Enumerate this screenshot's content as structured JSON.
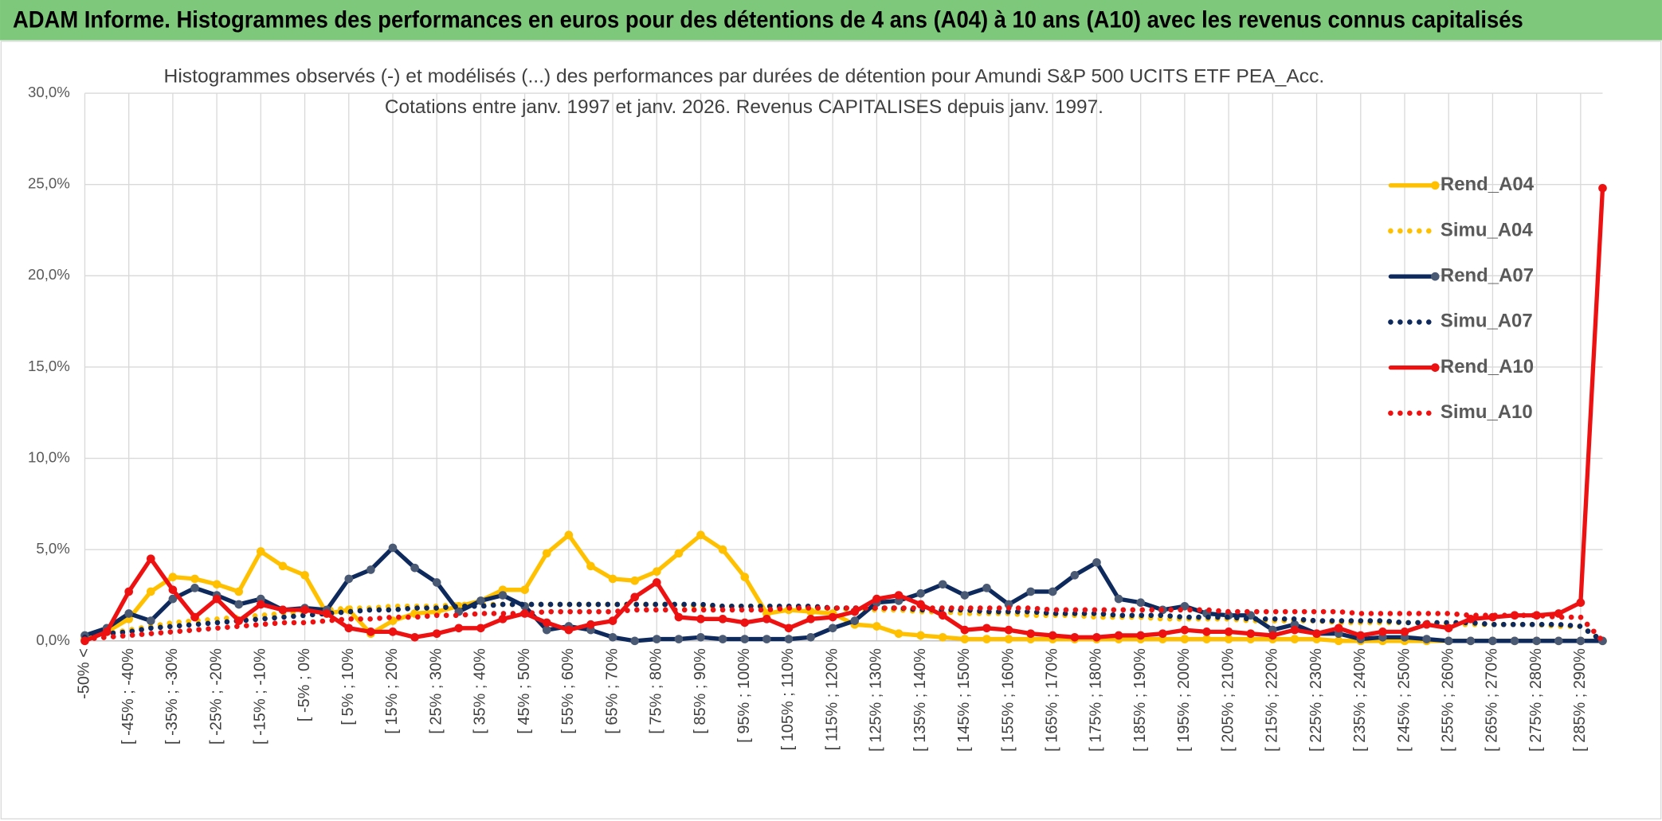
{
  "header": {
    "title": "ADAM Informe. Histogrammes des performances en euros pour des détentions de 4 ans (A04) à 10 ans (A10) avec les revenus connus capitalisés"
  },
  "chart_data": {
    "type": "line",
    "title": "Histogrammes observés (-) et modélisés (...) des performances par durées de détention pour Amundi S&P 500 UCITS ETF PEA_Acc.",
    "subtitle": "Cotations entre janv. 1997 et janv. 2026. Revenus CAPITALISES depuis janv. 1997.",
    "categories": [
      "-50% <",
      null,
      "[ -45% ; -40%",
      null,
      "[ -35% ; -30%",
      null,
      "[ -25% ; -20%",
      null,
      "[ -15% ; -10%",
      null,
      "[ -5% ; 0%",
      null,
      "[ 5% ; 10%",
      null,
      "[ 15% ; 20%",
      null,
      "[ 25% ; 30%",
      null,
      "[ 35% ; 40%",
      null,
      "[ 45% ; 50%",
      null,
      "[ 55% ; 60%",
      null,
      "[ 65% ; 70%",
      null,
      "[ 75% ; 80%",
      null,
      "[ 85% ; 90%",
      null,
      "[ 95% ; 100%",
      null,
      "[ 105% ; 110%",
      null,
      "[ 115% ; 120%",
      null,
      "[ 125% ; 130%",
      null,
      "[ 135% ; 140%",
      null,
      "[ 145% ; 150%",
      null,
      "[ 155% ; 160%",
      null,
      "[ 165% ; 170%",
      null,
      "[ 175% ; 180%",
      null,
      "[ 185% ; 190%",
      null,
      "[ 195% ; 200%",
      null,
      "[ 205% ; 210%",
      null,
      "[ 215% ; 220%",
      null,
      "[ 225% ; 230%",
      null,
      "[ 235% ; 240%",
      null,
      "[ 245% ; 250%",
      null,
      "[ 255% ; 260%",
      null,
      "[ 265% ; 270%",
      null,
      "[ 275% ; 280%",
      null,
      "[ 285% ; 290%",
      null
    ],
    "series": [
      {
        "name": "Rend_A04",
        "color": "#ffc000",
        "style": "solid",
        "marker": true,
        "values": [
          0.1,
          0.5,
          1.2,
          2.7,
          3.5,
          3.4,
          3.1,
          2.7,
          4.9,
          4.1,
          3.6,
          1.5,
          1.7,
          0.4,
          1.1,
          1.5,
          1.6,
          1.9,
          2.2,
          2.8,
          2.8,
          4.8,
          5.8,
          4.1,
          3.4,
          3.3,
          3.8,
          4.8,
          5.8,
          5.0,
          3.5,
          1.5,
          1.7,
          1.6,
          1.5,
          0.9,
          0.8,
          0.4,
          0.3,
          0.2,
          0.1,
          0.1,
          0.1,
          0.1,
          0.1,
          0.1,
          0.1,
          0.1,
          0.1,
          0.1,
          0.1,
          0.1,
          0.1,
          0.1,
          0.1,
          0.1,
          0.1,
          0.0,
          0.0,
          0.0,
          0.0,
          0.0,
          0.0,
          0.0,
          0.0,
          0.0,
          0.0,
          0.0,
          0.0,
          0.0
        ]
      },
      {
        "name": "Simu_A04",
        "color": "#ffc000",
        "style": "dotted",
        "marker": false,
        "values": [
          0.2,
          0.4,
          0.6,
          0.8,
          1.0,
          1.1,
          1.2,
          1.3,
          1.4,
          1.5,
          1.6,
          1.7,
          1.8,
          1.8,
          1.9,
          1.9,
          1.9,
          2.0,
          2.0,
          2.0,
          2.0,
          2.0,
          2.0,
          2.0,
          2.0,
          2.0,
          2.0,
          2.0,
          1.9,
          1.9,
          1.9,
          1.9,
          1.8,
          1.8,
          1.8,
          1.7,
          1.7,
          1.7,
          1.6,
          1.6,
          1.5,
          1.5,
          1.5,
          1.4,
          1.4,
          1.4,
          1.3,
          1.3,
          1.3,
          1.2,
          1.2,
          1.2,
          1.2,
          1.1,
          1.1,
          1.1,
          1.1,
          1.0,
          1.0,
          1.0,
          1.0,
          1.0,
          0.9,
          0.9,
          0.9,
          0.9,
          0.9,
          0.8,
          0.8,
          0.0
        ]
      },
      {
        "name": "Rend_A07",
        "color": "#0e2a5c",
        "style": "solid",
        "marker": true,
        "values": [
          0.3,
          0.7,
          1.5,
          1.1,
          2.3,
          2.9,
          2.5,
          2.0,
          2.3,
          1.7,
          1.8,
          1.7,
          3.4,
          3.9,
          5.1,
          4.0,
          3.2,
          1.6,
          2.2,
          2.5,
          1.9,
          0.6,
          0.8,
          0.6,
          0.2,
          0.0,
          0.1,
          0.1,
          0.2,
          0.1,
          0.1,
          0.1,
          0.1,
          0.2,
          0.7,
          1.1,
          2.1,
          2.2,
          2.6,
          3.1,
          2.5,
          2.9,
          2.0,
          2.7,
          2.7,
          3.6,
          4.3,
          2.3,
          2.1,
          1.7,
          1.9,
          1.5,
          1.4,
          1.4,
          0.6,
          0.9,
          0.4,
          0.4,
          0.1,
          0.2,
          0.2,
          0.1,
          0.0,
          0.0,
          0.0,
          0.0,
          0.0,
          0.0,
          0.0,
          0.0
        ]
      },
      {
        "name": "Simu_A07",
        "color": "#0e2a5c",
        "style": "dotted",
        "marker": false,
        "values": [
          0.2,
          0.4,
          0.5,
          0.7,
          0.8,
          0.9,
          1.0,
          1.1,
          1.2,
          1.3,
          1.4,
          1.5,
          1.6,
          1.7,
          1.7,
          1.8,
          1.8,
          1.9,
          1.9,
          2.0,
          2.0,
          2.0,
          2.0,
          2.0,
          2.0,
          2.0,
          2.0,
          2.0,
          2.0,
          1.9,
          1.9,
          1.9,
          1.9,
          1.9,
          1.8,
          1.8,
          1.8,
          1.8,
          1.7,
          1.7,
          1.7,
          1.6,
          1.6,
          1.6,
          1.5,
          1.5,
          1.5,
          1.4,
          1.4,
          1.4,
          1.3,
          1.3,
          1.3,
          1.2,
          1.2,
          1.2,
          1.1,
          1.1,
          1.1,
          1.1,
          1.0,
          1.0,
          1.0,
          1.0,
          0.9,
          0.9,
          0.9,
          0.9,
          0.8,
          0.0
        ]
      },
      {
        "name": "Rend_A10",
        "color": "#ee1111",
        "style": "solid",
        "marker": true,
        "values": [
          0.0,
          0.5,
          2.7,
          4.5,
          2.8,
          1.3,
          2.3,
          1.1,
          2.0,
          1.7,
          1.7,
          1.5,
          0.7,
          0.5,
          0.5,
          0.2,
          0.4,
          0.7,
          0.7,
          1.2,
          1.5,
          1.0,
          0.6,
          0.9,
          1.1,
          2.4,
          3.2,
          1.3,
          1.2,
          1.2,
          1.0,
          1.2,
          0.7,
          1.2,
          1.3,
          1.6,
          2.3,
          2.5,
          2.0,
          1.4,
          0.6,
          0.7,
          0.6,
          0.4,
          0.3,
          0.2,
          0.2,
          0.3,
          0.3,
          0.4,
          0.6,
          0.5,
          0.5,
          0.4,
          0.3,
          0.6,
          0.4,
          0.7,
          0.3,
          0.5,
          0.5,
          0.9,
          0.7,
          1.2,
          1.3,
          1.4,
          1.4,
          1.5,
          2.1,
          24.8
        ]
      },
      {
        "name": "Simu_A10",
        "color": "#ee1111",
        "style": "dotted",
        "marker": false,
        "values": [
          0.1,
          0.2,
          0.3,
          0.4,
          0.5,
          0.6,
          0.7,
          0.8,
          0.9,
          1.0,
          1.0,
          1.1,
          1.2,
          1.2,
          1.3,
          1.3,
          1.4,
          1.4,
          1.5,
          1.5,
          1.5,
          1.6,
          1.6,
          1.6,
          1.6,
          1.7,
          1.7,
          1.7,
          1.7,
          1.7,
          1.7,
          1.7,
          1.8,
          1.8,
          1.8,
          1.8,
          1.8,
          1.8,
          1.8,
          1.8,
          1.8,
          1.8,
          1.8,
          1.8,
          1.7,
          1.7,
          1.7,
          1.7,
          1.7,
          1.7,
          1.7,
          1.7,
          1.6,
          1.6,
          1.6,
          1.6,
          1.6,
          1.6,
          1.5,
          1.5,
          1.5,
          1.5,
          1.5,
          1.4,
          1.4,
          1.4,
          1.4,
          1.3,
          1.3,
          0.0
        ]
      }
    ],
    "ylim": [
      0,
      30
    ],
    "yticks": [
      {
        "value": 0,
        "label": "0,0%"
      },
      {
        "value": 5,
        "label": "5,0%"
      },
      {
        "value": 10,
        "label": "10,0%"
      },
      {
        "value": 15,
        "label": "15,0%"
      },
      {
        "value": 20,
        "label": "20,0%"
      },
      {
        "value": 25,
        "label": "25,0%"
      },
      {
        "value": 30,
        "label": "30,0%"
      }
    ],
    "grid": true,
    "legend": "right"
  }
}
